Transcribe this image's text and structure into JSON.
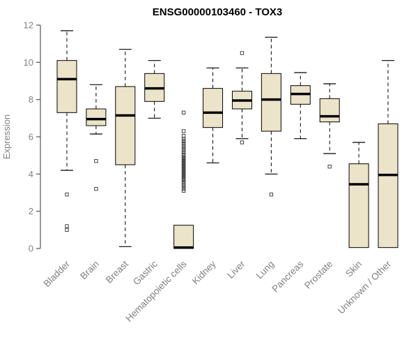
{
  "chart_data": {
    "type": "boxplot",
    "title": "ENSG00000103460 - TOX3",
    "ylabel": "Expression",
    "xlabel": "",
    "ylim": [
      0,
      12
    ],
    "yticks": [
      0,
      2,
      4,
      6,
      8,
      10,
      12
    ],
    "grid": false,
    "legend": "none",
    "categories": [
      "Bladder",
      "Brain",
      "Breast",
      "Gastric",
      "Hematopoietic cells",
      "Kidney",
      "Liver",
      "Lung",
      "Pancreas",
      "Prostate",
      "Skin",
      "Unknown / Other"
    ],
    "series": [
      {
        "category": "Bladder",
        "whisker_low": 4.2,
        "q1": 7.3,
        "median": 9.1,
        "q3": 10.1,
        "whisker_high": 11.7,
        "outliers": [
          2.9,
          1.2,
          1.0
        ]
      },
      {
        "category": "Brain",
        "whisker_low": 6.15,
        "q1": 6.6,
        "median": 6.95,
        "q3": 7.5,
        "whisker_high": 8.8,
        "outliers": [
          4.7,
          3.2
        ]
      },
      {
        "category": "Breast",
        "whisker_low": 0.1,
        "q1": 4.5,
        "median": 7.15,
        "q3": 8.7,
        "whisker_high": 10.7,
        "outliers": []
      },
      {
        "category": "Gastric",
        "whisker_low": 7.0,
        "q1": 7.9,
        "median": 8.6,
        "q3": 9.4,
        "whisker_high": 10.1,
        "outliers": []
      },
      {
        "category": "Hematopoietic cells",
        "whisker_low": 0.0,
        "q1": 0.0,
        "median": 0.05,
        "q3": 1.25,
        "whisker_high": 1.25,
        "outliers": [
          7.3,
          6.3,
          6.05,
          5.9,
          5.8,
          5.7,
          5.6,
          5.5,
          5.4,
          5.3,
          5.2,
          5.1,
          5.0,
          4.9,
          4.85,
          4.8,
          4.75,
          4.7,
          4.65,
          4.6,
          4.55,
          4.5,
          4.45,
          4.4,
          4.35,
          4.3,
          4.25,
          4.2,
          4.15,
          4.1,
          4.05,
          4.0,
          3.95,
          3.9,
          3.85,
          3.8,
          3.75,
          3.7,
          3.6,
          3.5,
          3.4,
          3.3,
          3.2,
          3.1
        ]
      },
      {
        "category": "Kidney",
        "whisker_low": 4.6,
        "q1": 6.5,
        "median": 7.3,
        "q3": 8.6,
        "whisker_high": 9.7,
        "outliers": []
      },
      {
        "category": "Liver",
        "whisker_low": 5.9,
        "q1": 7.5,
        "median": 7.95,
        "q3": 8.45,
        "whisker_high": 9.7,
        "outliers": [
          10.5,
          5.7
        ]
      },
      {
        "category": "Lung",
        "whisker_low": 4.0,
        "q1": 6.3,
        "median": 8.0,
        "q3": 9.4,
        "whisker_high": 11.35,
        "outliers": [
          2.9
        ]
      },
      {
        "category": "Pancreas",
        "whisker_low": 5.9,
        "q1": 7.75,
        "median": 8.3,
        "q3": 8.75,
        "whisker_high": 9.45,
        "outliers": []
      },
      {
        "category": "Prostate",
        "whisker_low": 5.1,
        "q1": 6.8,
        "median": 7.1,
        "q3": 8.05,
        "whisker_high": 8.85,
        "outliers": [
          4.4
        ]
      },
      {
        "category": "Skin",
        "whisker_low": 0.05,
        "q1": 0.05,
        "median": 3.45,
        "q3": 4.55,
        "whisker_high": 5.7,
        "outliers": []
      },
      {
        "category": "Unknown / Other",
        "whisker_low": 0.05,
        "q1": 0.05,
        "median": 3.95,
        "q3": 6.7,
        "whisker_high": 10.1,
        "outliers": []
      }
    ],
    "colors": {
      "box_fill": "#ece4c9",
      "box_stroke": "#000000",
      "median": "#000000",
      "whisker": "#000000",
      "outlier_stroke": "#444444",
      "axis_line": "#555555",
      "tick_text": "#808080",
      "title_text": "#000000"
    }
  }
}
